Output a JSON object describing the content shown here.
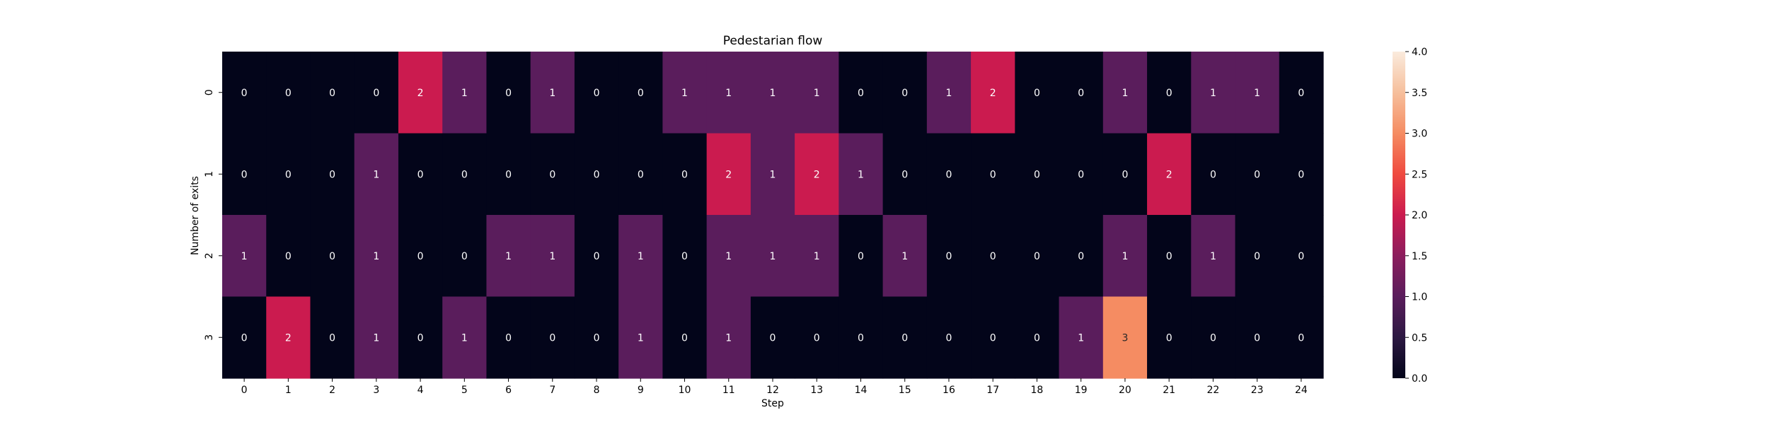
{
  "chart_data": {
    "type": "heatmap",
    "title": "Pedestarian flow",
    "xlabel": "Step",
    "ylabel": "Number of exits",
    "x_categories": [
      "0",
      "1",
      "2",
      "3",
      "4",
      "5",
      "6",
      "7",
      "8",
      "9",
      "10",
      "11",
      "12",
      "13",
      "14",
      "15",
      "16",
      "17",
      "18",
      "19",
      "20",
      "21",
      "22",
      "23",
      "24"
    ],
    "y_categories": [
      "0",
      "1",
      "2",
      "3"
    ],
    "values": [
      [
        0,
        0,
        0,
        0,
        2,
        1,
        0,
        1,
        0,
        0,
        1,
        1,
        1,
        1,
        0,
        0,
        1,
        2,
        0,
        0,
        1,
        0,
        1,
        1,
        0
      ],
      [
        0,
        0,
        0,
        1,
        0,
        0,
        0,
        0,
        0,
        0,
        0,
        2,
        1,
        2,
        1,
        0,
        0,
        0,
        0,
        0,
        0,
        2,
        0,
        0,
        0
      ],
      [
        1,
        0,
        0,
        1,
        0,
        0,
        1,
        1,
        0,
        1,
        0,
        1,
        1,
        1,
        0,
        1,
        0,
        0,
        0,
        0,
        1,
        0,
        1,
        0,
        0
      ],
      [
        0,
        2,
        0,
        1,
        0,
        1,
        0,
        0,
        0,
        1,
        0,
        1,
        0,
        0,
        0,
        0,
        0,
        0,
        0,
        1,
        3,
        0,
        0,
        0,
        0
      ]
    ],
    "colorbar": {
      "range": [
        0,
        4
      ],
      "ticks": [
        "0.0",
        "0.5",
        "1.0",
        "1.5",
        "2.0",
        "2.5",
        "3.0",
        "3.5",
        "4.0"
      ],
      "colormap": "rocket"
    },
    "annotations": true,
    "grid": false
  }
}
